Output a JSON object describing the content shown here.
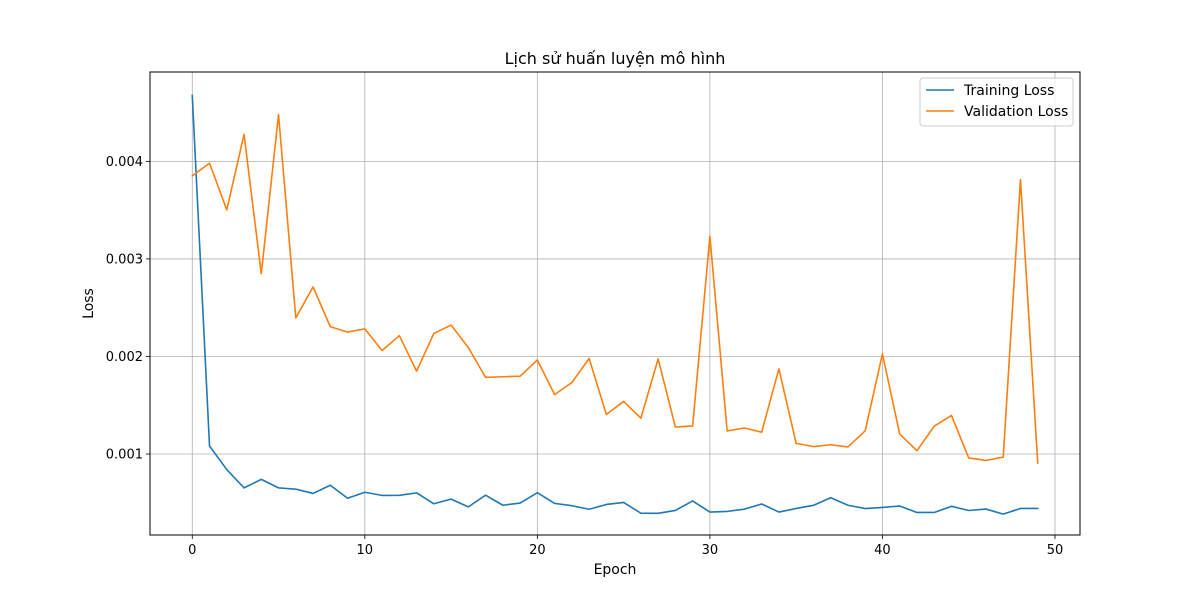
{
  "chart_data": {
    "type": "line",
    "title": "Lịch sử huấn luyện mô hình",
    "xlabel": "Epoch",
    "ylabel": "Loss",
    "xlim": [
      -2.45,
      51.45
    ],
    "ylim": [
      0.00017,
      0.004916
    ],
    "xticks": [
      0,
      10,
      20,
      30,
      40,
      50
    ],
    "yticks": [
      0.001,
      0.002,
      0.003,
      0.004
    ],
    "ytick_labels": [
      "0.001",
      "0.002",
      "0.003",
      "0.004"
    ],
    "grid": true,
    "legend_position": "top-right",
    "x": [
      0,
      1,
      2,
      3,
      4,
      5,
      6,
      7,
      8,
      9,
      10,
      11,
      12,
      13,
      14,
      15,
      16,
      17,
      18,
      19,
      20,
      21,
      22,
      23,
      24,
      25,
      26,
      27,
      28,
      29,
      30,
      31,
      32,
      33,
      34,
      35,
      36,
      37,
      38,
      39,
      40,
      41,
      42,
      43,
      44,
      45,
      46,
      47,
      48,
      49
    ],
    "series": [
      {
        "name": "Training Loss",
        "color": "#1f77b4",
        "values": [
          0.004676,
          0.001082,
          0.000841,
          0.000653,
          0.00074,
          0.000653,
          0.00064,
          0.000596,
          0.00068,
          0.000547,
          0.000608,
          0.000576,
          0.000577,
          0.000602,
          0.00049,
          0.000538,
          0.000458,
          0.000578,
          0.000475,
          0.000497,
          0.000604,
          0.000494,
          0.00047,
          0.000434,
          0.000483,
          0.000504,
          0.000393,
          0.000392,
          0.000422,
          0.000519,
          0.000405,
          0.000412,
          0.000435,
          0.000488,
          0.000405,
          0.000442,
          0.000474,
          0.000552,
          0.000475,
          0.000441,
          0.000453,
          0.000467,
          0.000401,
          0.000401,
          0.000464,
          0.000421,
          0.000436,
          0.000384,
          0.000442,
          0.000442
        ]
      },
      {
        "name": "Validation Loss",
        "color": "#ff7f0e",
        "values": [
          0.003851,
          0.003982,
          0.003502,
          0.004277,
          0.002849,
          0.00448,
          0.002395,
          0.002713,
          0.002306,
          0.00225,
          0.002283,
          0.002061,
          0.002213,
          0.00185,
          0.002236,
          0.002322,
          0.002091,
          0.001786,
          0.001792,
          0.001798,
          0.001964,
          0.001609,
          0.001733,
          0.001979,
          0.001405,
          0.001539,
          0.001367,
          0.001975,
          0.001276,
          0.001288,
          0.003231,
          0.001237,
          0.001267,
          0.001224,
          0.001873,
          0.001109,
          0.001077,
          0.001095,
          0.001073,
          0.001238,
          0.002026,
          0.001205,
          0.001034,
          0.001285,
          0.001396,
          0.00096,
          0.000934,
          0.000968,
          0.003813,
          0.000908
        ]
      }
    ]
  }
}
